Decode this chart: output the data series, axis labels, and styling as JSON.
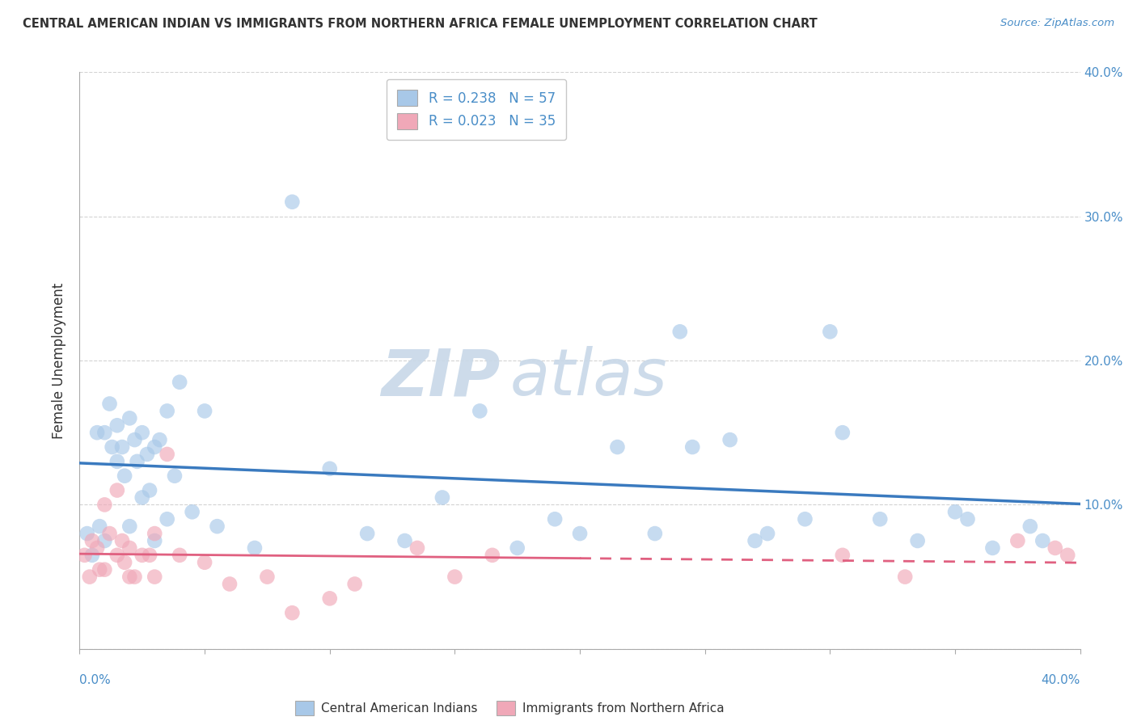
{
  "title": "CENTRAL AMERICAN INDIAN VS IMMIGRANTS FROM NORTHERN AFRICA FEMALE UNEMPLOYMENT CORRELATION CHART",
  "source": "Source: ZipAtlas.com",
  "ylabel": "Female Unemployment",
  "legend1_r": "R = 0.238",
  "legend1_n": "N = 57",
  "legend2_r": "R = 0.023",
  "legend2_n": "N = 35",
  "color_blue": "#a8c8e8",
  "color_pink": "#f0a8b8",
  "color_blue_line": "#3a7abf",
  "color_pink_line": "#e06080",
  "watermark_zip": "ZIP",
  "watermark_atlas": "atlas",
  "blue_x": [
    0.3,
    0.5,
    0.7,
    0.8,
    1.0,
    1.0,
    1.2,
    1.3,
    1.5,
    1.5,
    1.7,
    1.8,
    2.0,
    2.0,
    2.2,
    2.3,
    2.5,
    2.5,
    2.7,
    2.8,
    3.0,
    3.0,
    3.2,
    3.5,
    3.5,
    3.8,
    4.0,
    4.5,
    5.0,
    5.5,
    7.0,
    8.5,
    10.0,
    11.5,
    13.0,
    14.5,
    16.0,
    17.5,
    19.0,
    20.0,
    21.5,
    23.0,
    24.5,
    26.0,
    27.5,
    29.0,
    30.5,
    32.0,
    33.5,
    35.0,
    36.5,
    38.0,
    24.0,
    30.0,
    27.0,
    35.5,
    38.5
  ],
  "blue_y": [
    8.0,
    6.5,
    15.0,
    8.5,
    15.0,
    7.5,
    17.0,
    14.0,
    15.5,
    13.0,
    14.0,
    12.0,
    16.0,
    8.5,
    14.5,
    13.0,
    15.0,
    10.5,
    13.5,
    11.0,
    14.0,
    7.5,
    14.5,
    16.5,
    9.0,
    12.0,
    18.5,
    9.5,
    16.5,
    8.5,
    7.0,
    31.0,
    12.5,
    8.0,
    7.5,
    10.5,
    16.5,
    7.0,
    9.0,
    8.0,
    14.0,
    8.0,
    14.0,
    14.5,
    8.0,
    9.0,
    15.0,
    9.0,
    7.5,
    9.5,
    7.0,
    8.5,
    22.0,
    22.0,
    7.5,
    9.0,
    7.5
  ],
  "pink_x": [
    0.2,
    0.4,
    0.5,
    0.7,
    0.8,
    1.0,
    1.0,
    1.2,
    1.5,
    1.5,
    1.7,
    1.8,
    2.0,
    2.0,
    2.2,
    2.5,
    2.8,
    3.0,
    3.0,
    3.5,
    4.0,
    5.0,
    6.0,
    7.5,
    8.5,
    10.0,
    11.0,
    13.5,
    15.0,
    16.5,
    30.5,
    33.0,
    37.5,
    39.0,
    39.5
  ],
  "pink_y": [
    6.5,
    5.0,
    7.5,
    7.0,
    5.5,
    5.5,
    10.0,
    8.0,
    11.0,
    6.5,
    7.5,
    6.0,
    7.0,
    5.0,
    5.0,
    6.5,
    6.5,
    5.0,
    8.0,
    13.5,
    6.5,
    6.0,
    4.5,
    5.0,
    2.5,
    3.5,
    4.5,
    7.0,
    5.0,
    6.5,
    6.5,
    5.0,
    7.5,
    7.0,
    6.5
  ],
  "pink_solid_end": 20.0,
  "xmin": 0,
  "xmax": 40,
  "ymin": 0,
  "ymax": 40
}
